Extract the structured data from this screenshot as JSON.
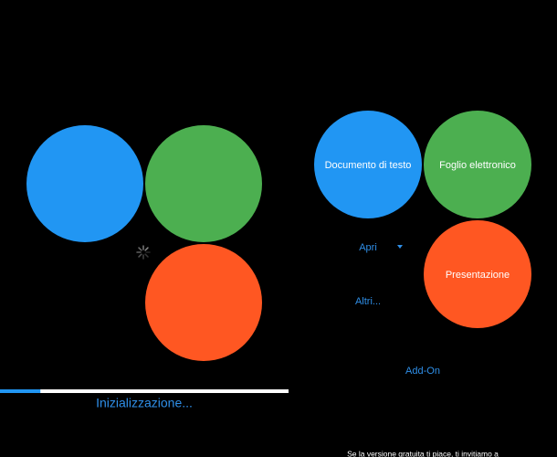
{
  "loading_screen": {
    "status": "Inizializzazione...",
    "progress": 14
  },
  "home_screen": {
    "buttons": [
      "Documento di testo",
      "Foglio elettronico",
      "Presentazione"
    ],
    "open": "Apri",
    "more": "Altri...",
    "addons": "Add-On",
    "footer": "Se la versione gratuita ti piace, ti invitiamo a"
  }
}
